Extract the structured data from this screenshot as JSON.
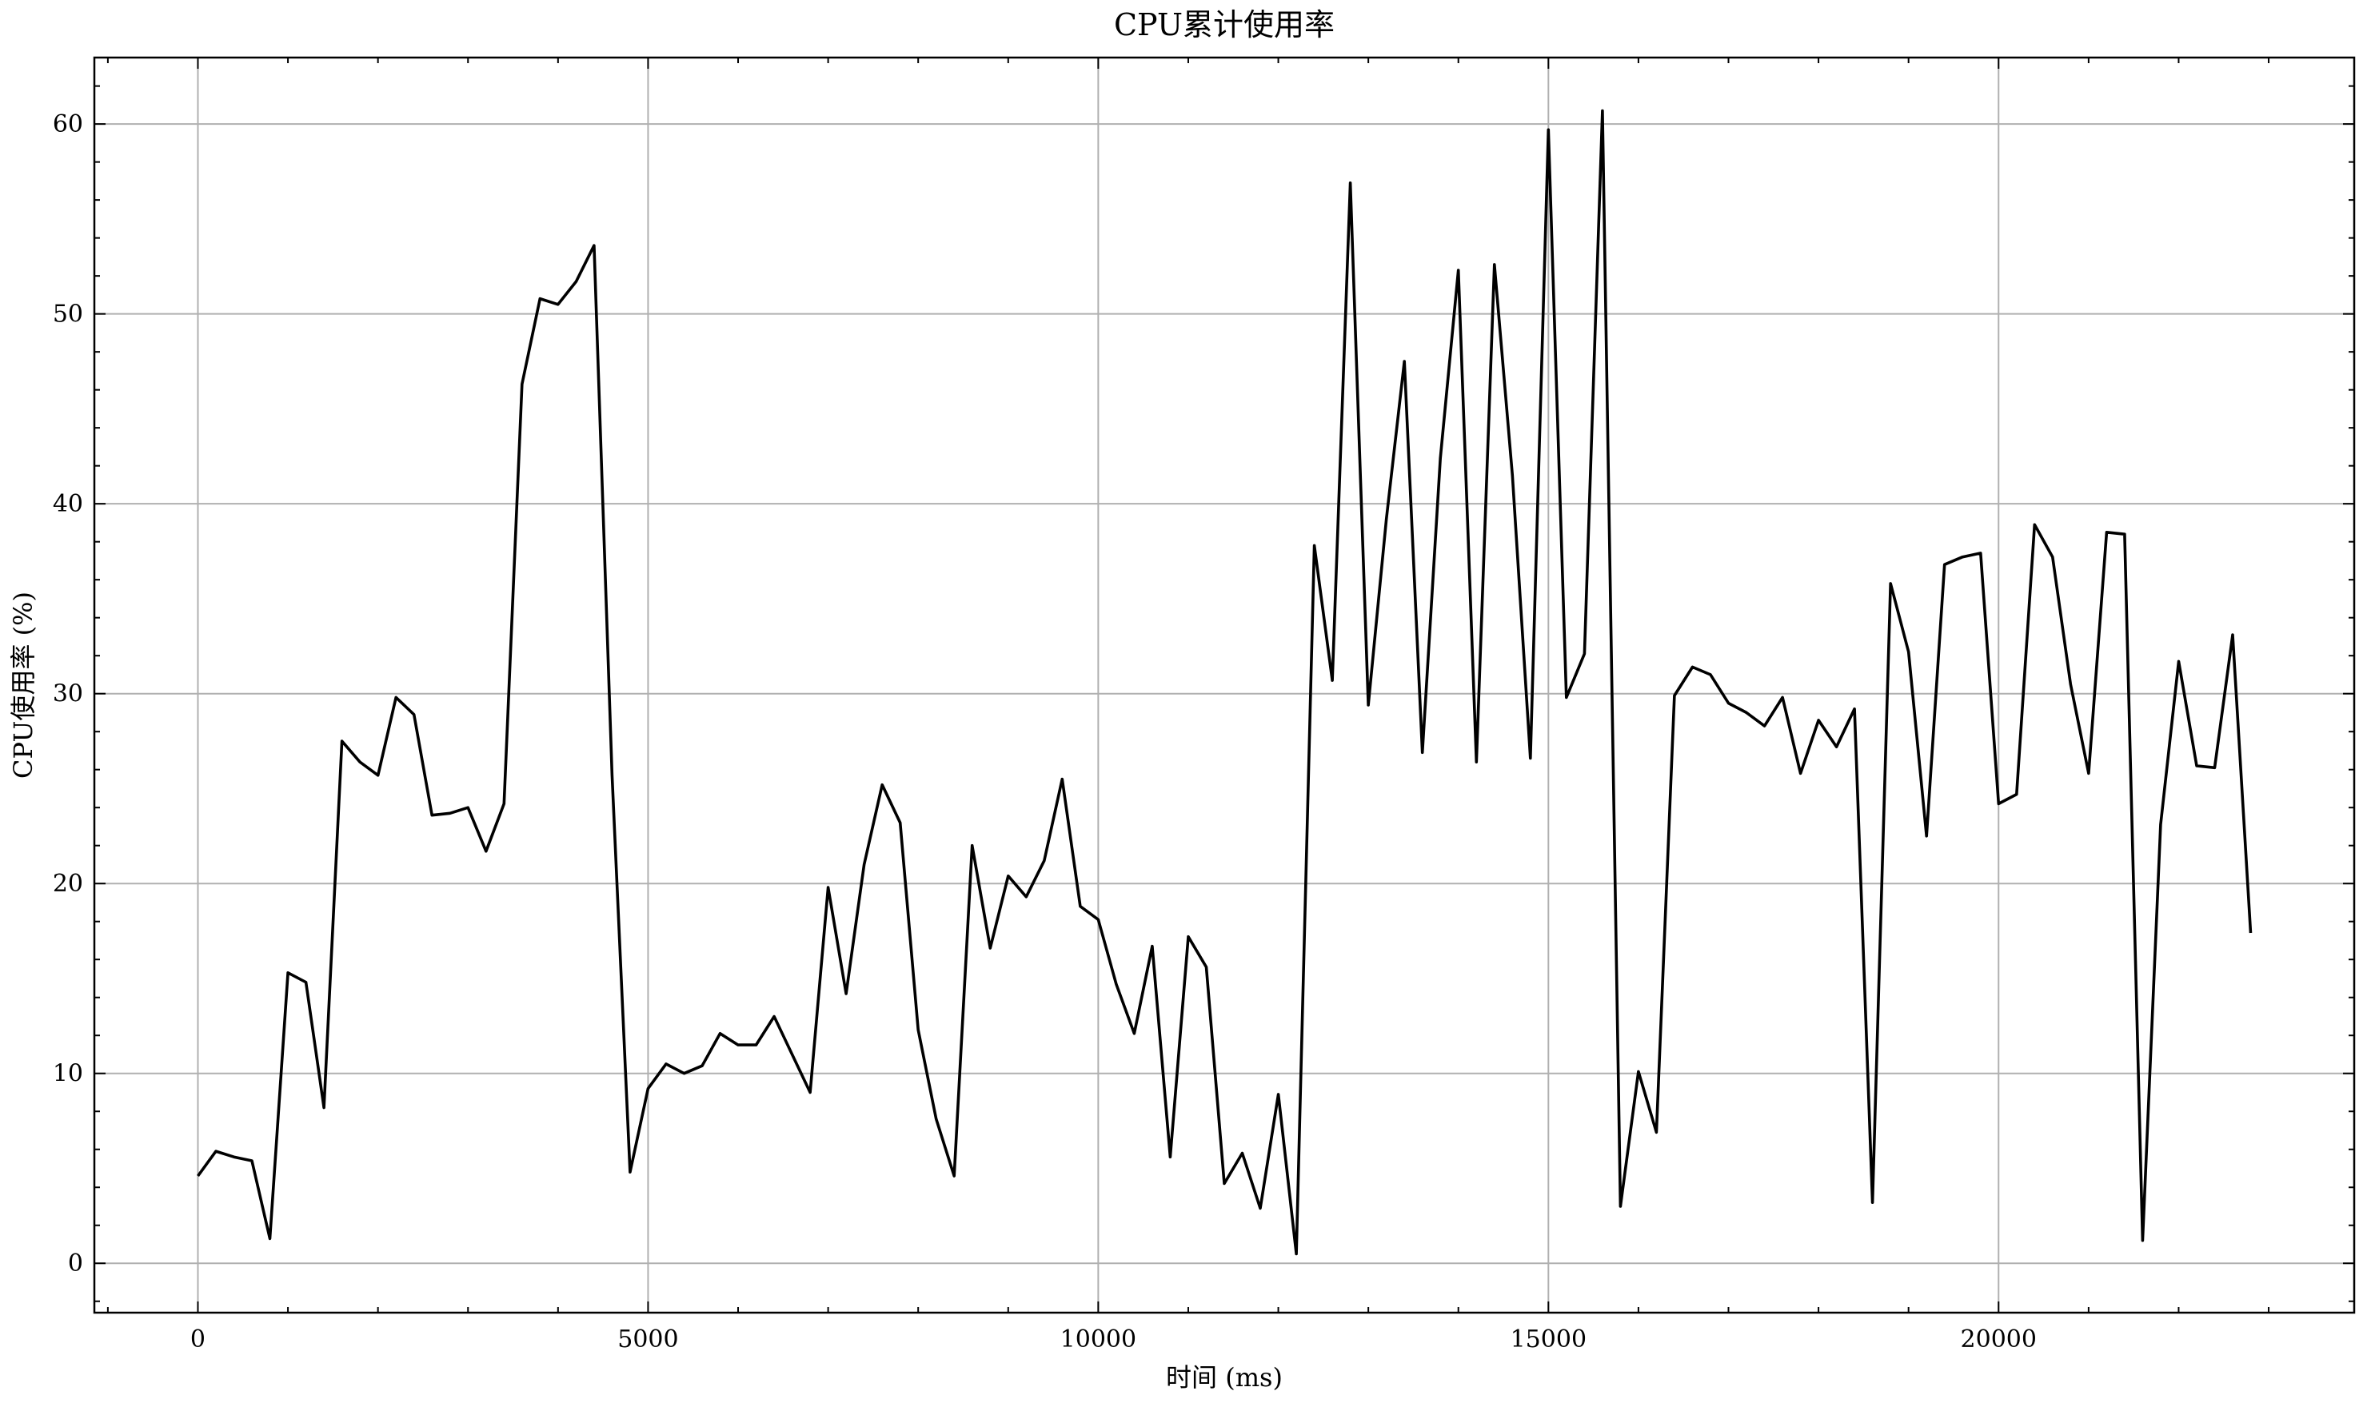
{
  "chart_data": {
    "type": "line",
    "title": "CPU累计使用率",
    "xlabel": "时间 (ms)",
    "ylabel": "CPU使用率 (%)",
    "xlim": [
      -1150,
      23950
    ],
    "ylim": [
      -2.6,
      63.5
    ],
    "grid": true,
    "xticks": [
      0,
      5000,
      10000,
      15000,
      20000
    ],
    "yticks": [
      0,
      10,
      20,
      30,
      40,
      50,
      60
    ],
    "x_minor_step": 1000,
    "y_minor_step": 2,
    "series": [
      {
        "color": "#000000",
        "x": [
          0,
          200,
          400,
          600,
          800,
          1000,
          1200,
          1400,
          1600,
          1800,
          2000,
          2200,
          2400,
          2600,
          2800,
          3000,
          3200,
          3400,
          3600,
          3800,
          4000,
          4200,
          4400,
          4600,
          4800,
          5000,
          5200,
          5400,
          5600,
          5800,
          6000,
          6200,
          6400,
          6600,
          6800,
          7000,
          7200,
          7400,
          7600,
          7800,
          8000,
          8200,
          8400,
          8600,
          8800,
          9000,
          9200,
          9400,
          9600,
          9800,
          10000,
          10200,
          10400,
          10600,
          10800,
          11000,
          11200,
          11400,
          11600,
          11800,
          12000,
          12200,
          12400,
          12600,
          12800,
          13000,
          13200,
          13400,
          13600,
          13800,
          14000,
          14200,
          14400,
          14600,
          14800,
          15000,
          15200,
          15400,
          15600,
          15800,
          16000,
          16200,
          16400,
          16600,
          16800,
          17000,
          17200,
          17400,
          17600,
          17800,
          18000,
          18200,
          18400,
          18600,
          18800,
          19000,
          19200,
          19400,
          19600,
          19800,
          20000,
          20200,
          20400,
          20600,
          20800,
          21000,
          21200,
          21400,
          21600,
          21800,
          22000,
          22200,
          22400,
          22600,
          22800
        ],
        "y": [
          4.6,
          5.9,
          5.6,
          5.4,
          1.3,
          15.3,
          14.8,
          8.2,
          27.5,
          26.4,
          25.7,
          29.8,
          28.9,
          23.6,
          23.7,
          24.0,
          21.7,
          24.2,
          46.3,
          50.8,
          50.5,
          51.7,
          53.6,
          25.7,
          4.8,
          9.2,
          10.5,
          10.0,
          10.4,
          12.1,
          11.5,
          11.5,
          13.0,
          11.0,
          9.0,
          19.8,
          14.2,
          21.0,
          25.2,
          23.2,
          12.3,
          7.6,
          4.6,
          22.0,
          16.6,
          20.4,
          19.3,
          21.2,
          25.5,
          18.8,
          18.1,
          14.7,
          12.1,
          16.7,
          5.6,
          17.2,
          15.6,
          4.2,
          5.8,
          2.9,
          8.9,
          0.5,
          37.8,
          30.7,
          56.9,
          29.4,
          39.2,
          47.5,
          26.9,
          42.4,
          52.3,
          26.4,
          52.6,
          41.5,
          26.6,
          59.7,
          29.8,
          32.1,
          60.7,
          3.0,
          10.1,
          6.9,
          29.9,
          31.4,
          31.0,
          29.5,
          29.0,
          28.3,
          29.8,
          25.8,
          28.6,
          27.2,
          29.2,
          3.2,
          35.8,
          32.2,
          22.5,
          36.8,
          37.2,
          37.4,
          24.2,
          24.7,
          38.9,
          37.2,
          30.5,
          25.8,
          38.5,
          38.4,
          1.2,
          23.1,
          31.7,
          26.2,
          26.1,
          33.1,
          17.4
        ]
      }
    ]
  }
}
